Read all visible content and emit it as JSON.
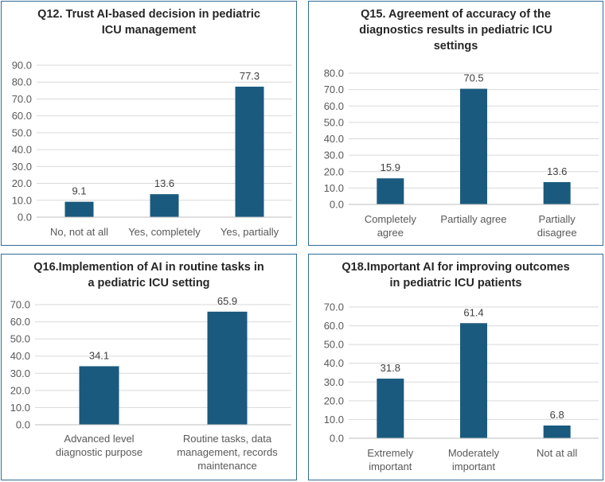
{
  "colors": {
    "bar": "#1a5a7e",
    "grid": "#d9d9d9",
    "border": "#2f6b9a"
  },
  "chart_data": [
    {
      "type": "bar",
      "title": "Q12. Trust AI-based decision in pediatric\nICU management",
      "categories": [
        "No, not at all",
        "Yes, completely",
        "Yes, partially"
      ],
      "values": [
        9.1,
        13.6,
        77.3
      ],
      "value_labels": [
        "9.1",
        "13.6",
        "77.3"
      ],
      "yticks": [
        "0.0",
        "10.0",
        "20.0",
        "30.0",
        "40.0",
        "50.0",
        "60.0",
        "70.0",
        "80.0",
        "90.0"
      ],
      "ylim": [
        0,
        90
      ],
      "xlabel": "",
      "ylabel": "",
      "grid": true,
      "legend": "none"
    },
    {
      "type": "bar",
      "title": "Q15. Agreement of accuracy of the\ndiagnostics results in pediatric ICU\nsettings",
      "categories": [
        "Completely\nagree",
        "Partially agree",
        "Partially\ndisagree"
      ],
      "values": [
        15.9,
        70.5,
        13.6
      ],
      "value_labels": [
        "15.9",
        "70.5",
        "13.6"
      ],
      "yticks": [
        "0.0",
        "10.0",
        "20.0",
        "30.0",
        "40.0",
        "50.0",
        "60.0",
        "70.0",
        "80.0"
      ],
      "ylim": [
        0,
        80
      ],
      "xlabel": "",
      "ylabel": "",
      "grid": true,
      "legend": "none"
    },
    {
      "type": "bar",
      "title": "Q16.Implemention of AI in routine tasks in\na pediatric ICU setting",
      "categories": [
        "Advanced level\ndiagnostic purpose",
        "Routine tasks, data\nmanagement, records\nmaintenance"
      ],
      "values": [
        34.1,
        65.9
      ],
      "value_labels": [
        "34.1",
        "65.9"
      ],
      "yticks": [
        "0.0",
        "10.0",
        "20.0",
        "30.0",
        "40.0",
        "50.0",
        "60.0",
        "70.0"
      ],
      "ylim": [
        0,
        70
      ],
      "xlabel": "",
      "ylabel": "",
      "grid": true,
      "legend": "none"
    },
    {
      "type": "bar",
      "title": "Q18.Important AI for improving outcomes\nin pediatric ICU patients",
      "categories": [
        "Extremely\nimportant",
        "Moderately\nimportant",
        "Not at all"
      ],
      "values": [
        31.8,
        61.4,
        6.8
      ],
      "value_labels": [
        "31.8",
        "61.4",
        "6.8"
      ],
      "yticks": [
        "0.0",
        "10.0",
        "20.0",
        "30.0",
        "40.0",
        "50.0",
        "60.0",
        "70.0"
      ],
      "ylim": [
        0,
        70
      ],
      "xlabel": "",
      "ylabel": "",
      "grid": true,
      "legend": "none"
    }
  ]
}
